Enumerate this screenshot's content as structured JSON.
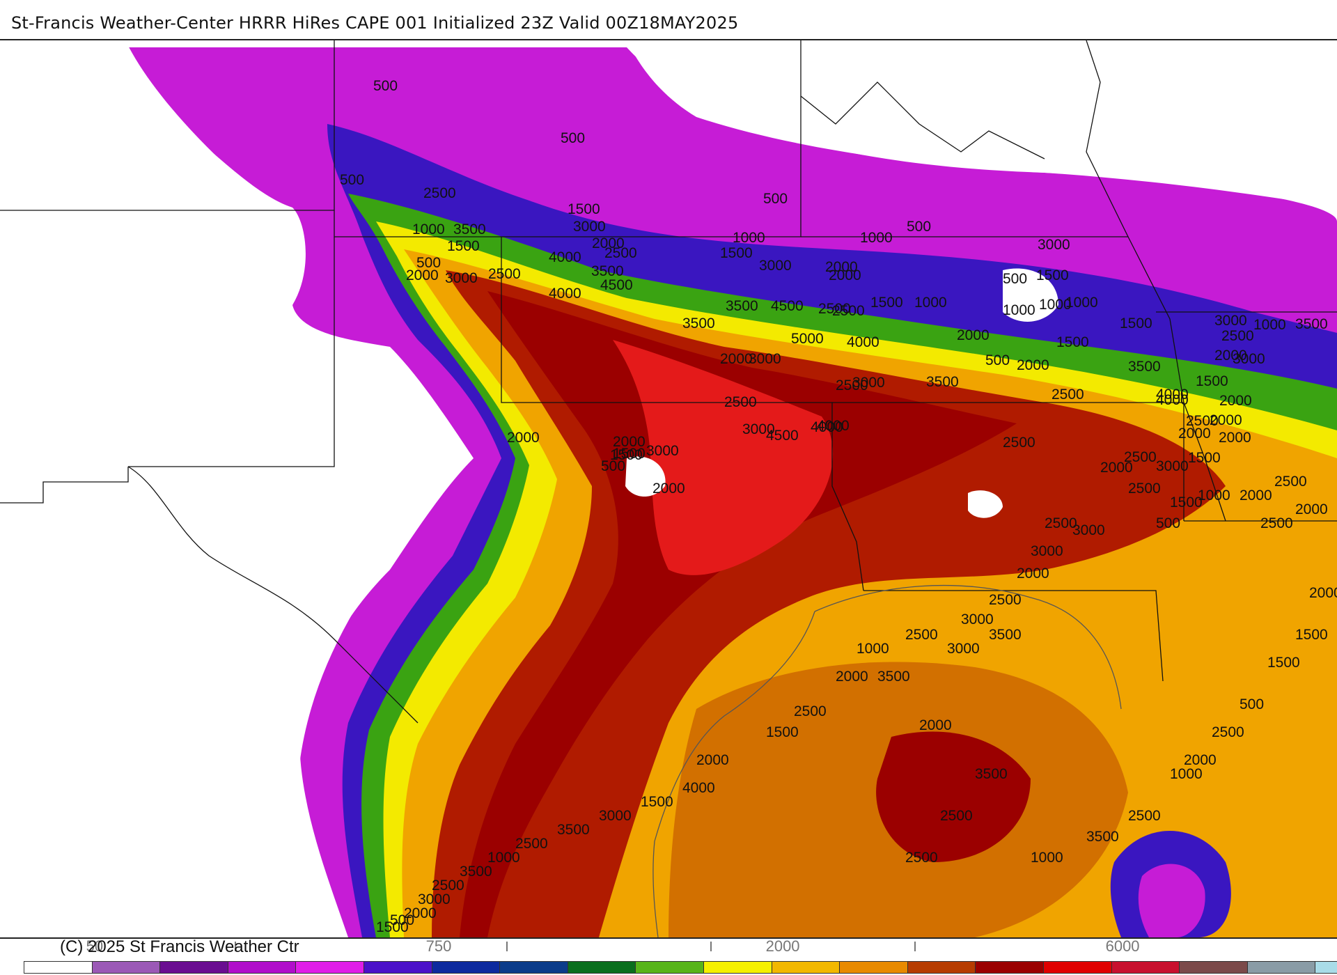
{
  "header": {
    "title": "St-Francis Weather-Center HRRR HiRes CAPE  001 Initialized  23Z Valid 00Z18MAY2025"
  },
  "footer": {
    "copyright": "(C) 2025 St Francis Weather Ctr"
  },
  "colorbar": {
    "colors": [
      "#ffffff",
      "#9b59b6",
      "#6a0d91",
      "#b10ecb",
      "#e01ee8",
      "#4b12c9",
      "#0d2a9e",
      "#0b3c8a",
      "#0a6e1e",
      "#58b41a",
      "#f5f000",
      "#f2b800",
      "#e88a00",
      "#b63c00",
      "#9a0000",
      "#e00000",
      "#c8102e",
      "#7b4a4a",
      "#8a9ca6",
      "#a9dce8"
    ],
    "tick_labels": [
      {
        "text": "50",
        "index": 1
      },
      {
        "text": "750",
        "index": 6
      },
      {
        "text": "2000",
        "index": 11
      },
      {
        "text": "6000",
        "index": 16
      }
    ]
  },
  "map": {
    "palette": {
      "purple": "#c61cd6",
      "blue": "#3a16c0",
      "green": "#3aa312",
      "yellow": "#f3ea00",
      "orange": "#f0a400",
      "darkorange": "#d27000",
      "red": "#b01b00",
      "crimson": "#9b0000",
      "brightred": "#e41a1a"
    },
    "contour_labels": [
      "500",
      "500",
      "500",
      "2500",
      "1500",
      "3000",
      "1000",
      "3500",
      "1500",
      "2000",
      "500",
      "2000",
      "3000",
      "2500",
      "4000",
      "2500",
      "3500",
      "4500",
      "4000",
      "1000",
      "1500",
      "3000",
      "500",
      "2000",
      "1000",
      "500",
      "3500",
      "4500",
      "3500",
      "2500",
      "1500",
      "1000",
      "5000",
      "4000",
      "2500",
      "2000",
      "3000",
      "2000",
      "500",
      "1000",
      "2000",
      "1000",
      "500",
      "1500",
      "2000",
      "2500",
      "1500",
      "1000",
      "3000",
      "3500",
      "3000",
      "4000",
      "2000",
      "2000",
      "3000",
      "1500",
      "500",
      "1500",
      "2000",
      "4500",
      "3000",
      "2500",
      "4000",
      "1500",
      "2500",
      "2000",
      "1000",
      "2500",
      "3500",
      "3000",
      "2500",
      "2000",
      "4000",
      "3000",
      "3500",
      "4000",
      "1500",
      "2500",
      "2000",
      "2000",
      "2000",
      "1500",
      "3000",
      "2500",
      "2000",
      "2500",
      "1500",
      "1000",
      "2000",
      "2500",
      "2000",
      "2500",
      "500",
      "3000",
      "2500",
      "3000",
      "2000",
      "2500",
      "3000",
      "3500",
      "2500",
      "3000",
      "1000",
      "3500",
      "2000",
      "2500",
      "1500",
      "2000",
      "4000",
      "1500",
      "3000",
      "3500",
      "2500",
      "1000",
      "3500",
      "2500",
      "3000",
      "2000",
      "500",
      "1500",
      "2000",
      "3500",
      "2500",
      "2500",
      "1000",
      "3500",
      "2500",
      "1000",
      "2500",
      "500",
      "1500",
      "1500",
      "2000",
      "2000"
    ]
  }
}
